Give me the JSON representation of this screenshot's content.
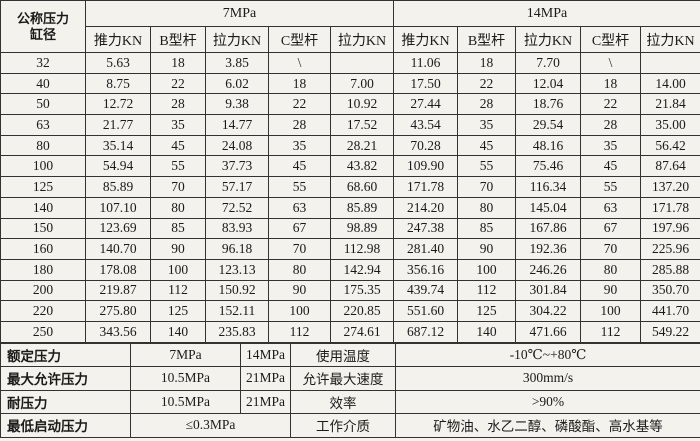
{
  "header": {
    "corner": [
      "公称压力",
      "缸径"
    ],
    "groups": [
      "7MPa",
      "14MPa"
    ],
    "columns": [
      "推力KN",
      "B型杆",
      "拉力KN",
      "C型杆",
      "拉力KN",
      "推力KN",
      "B型杆",
      "拉力KN",
      "C型杆",
      "拉力KN"
    ]
  },
  "table": {
    "rows": [
      [
        "32",
        "5.63",
        "18",
        "3.85",
        "\\",
        null,
        "11.06",
        "18",
        "7.70",
        "\\",
        null
      ],
      [
        "40",
        "8.75",
        "22",
        "6.02",
        "18",
        "7.00",
        "17.50",
        "22",
        "12.04",
        "18",
        "14.00"
      ],
      [
        "50",
        "12.72",
        "28",
        "9.38",
        "22",
        "10.92",
        "27.44",
        "28",
        "18.76",
        "22",
        "21.84"
      ],
      [
        "63",
        "21.77",
        "35",
        "14.77",
        "28",
        "17.52",
        "43.54",
        "35",
        "29.54",
        "28",
        "35.00"
      ],
      [
        "80",
        "35.14",
        "45",
        "24.08",
        "35",
        "28.21",
        "70.28",
        "45",
        "48.16",
        "35",
        "56.42"
      ],
      [
        "100",
        "54.94",
        "55",
        "37.73",
        "45",
        "43.82",
        "109.90",
        "55",
        "75.46",
        "45",
        "87.64"
      ],
      [
        "125",
        "85.89",
        "70",
        "57.17",
        "55",
        "68.60",
        "171.78",
        "70",
        "116.34",
        "55",
        "137.20"
      ],
      [
        "140",
        "107.10",
        "80",
        "72.52",
        "63",
        "85.89",
        "214.20",
        "80",
        "145.04",
        "63",
        "171.78"
      ],
      [
        "150",
        "123.69",
        "85",
        "83.93",
        "67",
        "98.89",
        "247.38",
        "85",
        "167.86",
        "67",
        "197.96"
      ],
      [
        "160",
        "140.70",
        "90",
        "96.18",
        "70",
        "112.98",
        "281.40",
        "90",
        "192.36",
        "70",
        "225.96"
      ],
      [
        "180",
        "178.08",
        "100",
        "123.13",
        "80",
        "142.94",
        "356.16",
        "100",
        "246.26",
        "80",
        "285.88"
      ],
      [
        "200",
        "219.87",
        "112",
        "150.92",
        "90",
        "175.35",
        "439.74",
        "112",
        "301.84",
        "90",
        "350.70"
      ],
      [
        "220",
        "275.80",
        "125",
        "152.11",
        "100",
        "220.85",
        "551.60",
        "125",
        "304.22",
        "100",
        "441.70"
      ],
      [
        "250",
        "343.56",
        "140",
        "235.83",
        "112",
        "274.61",
        "687.12",
        "140",
        "471.66",
        "112",
        "549.22"
      ]
    ]
  },
  "footer": {
    "rows": [
      [
        "额定压力",
        "7MPa",
        "14MPa",
        "使用温度",
        "-10℃~+80℃"
      ],
      [
        "最大允许压力",
        "10.5MPa",
        "21MPa",
        "允许最大速度",
        "300mm/s"
      ],
      [
        "耐压力",
        "10.5MPa",
        "21MPa",
        "效率",
        ">90%"
      ],
      [
        "最低启动压力",
        "≤0.3MPa",
        "工作介质",
        "矿物油、水乙二醇、磷酸酯、高水基等"
      ]
    ]
  }
}
